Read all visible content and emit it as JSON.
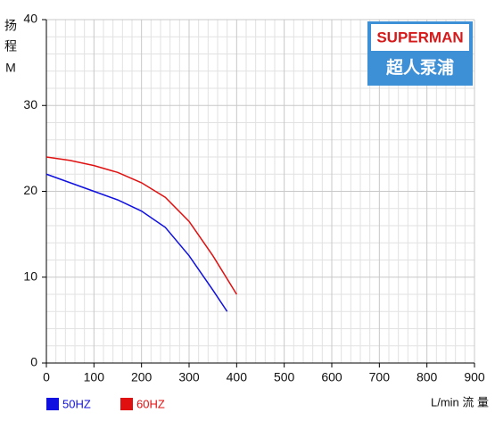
{
  "chart_data": {
    "type": "line",
    "ylabel": [
      "扬",
      "程",
      "M"
    ],
    "xlabel": "L/min 流 量",
    "logo": {
      "brand": "SUPERMAN",
      "subtitle": "超人泵浦"
    },
    "xlim": [
      0,
      900
    ],
    "xticks": [
      0,
      100,
      200,
      300,
      400,
      500,
      600,
      700,
      800,
      900
    ],
    "ylim": [
      0,
      40
    ],
    "yticks": [
      0,
      10,
      20,
      30,
      40
    ],
    "grid": true,
    "legend": "bottom-left",
    "series": [
      {
        "name": "50HZ",
        "color": "#1010e0",
        "x": [
          0,
          50,
          100,
          150,
          200,
          250,
          300,
          350,
          380
        ],
        "values": [
          22,
          21,
          20,
          19,
          17.7,
          15.8,
          12.5,
          8.5,
          6
        ]
      },
      {
        "name": "60HZ",
        "color": "#e01010",
        "x": [
          0,
          50,
          100,
          150,
          200,
          250,
          300,
          350,
          400
        ],
        "values": [
          24,
          23.6,
          23,
          22.2,
          21,
          19.3,
          16.5,
          12.5,
          8
        ]
      }
    ]
  }
}
